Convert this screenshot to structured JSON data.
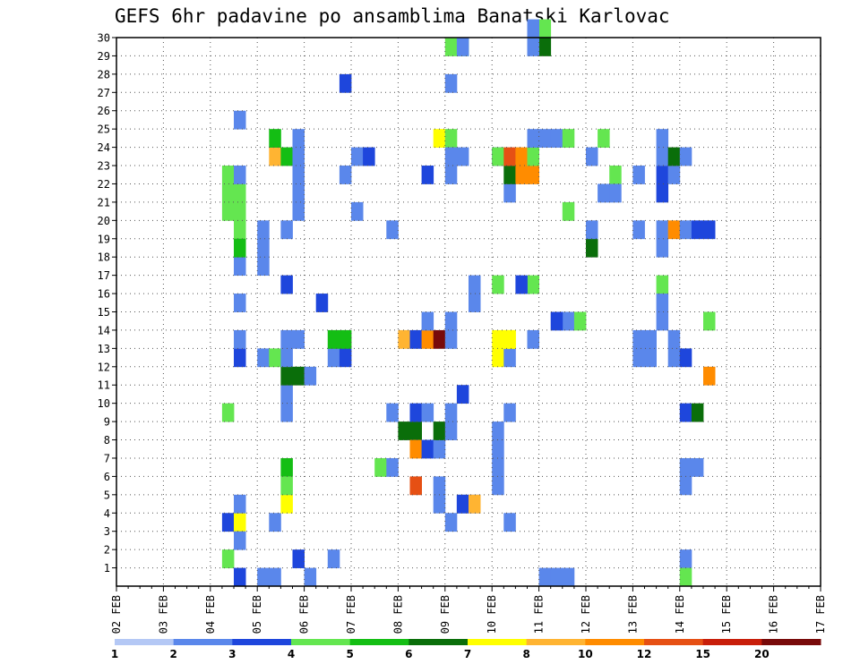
{
  "chart_data": {
    "type": "heatmap",
    "title": "GEFS 6hr padavine po ansamblima Banatski Karlovac",
    "x_ticks": [
      "02 FEB",
      "03 FEB",
      "04 FEB",
      "05 FEB",
      "06 FEB",
      "07 FEB",
      "08 FEB",
      "09 FEB",
      "10 FEB",
      "11 FEB",
      "12 FEB",
      "13 FEB",
      "14 FEB",
      "15 FEB",
      "16 FEB",
      "17 FEB"
    ],
    "y_ticks": [
      1,
      2,
      3,
      4,
      5,
      6,
      7,
      8,
      9,
      10,
      11,
      12,
      13,
      14,
      15,
      16,
      17,
      18,
      19,
      20,
      21,
      22,
      23,
      24,
      25,
      26,
      27,
      28,
      29,
      30
    ],
    "x_range": [
      "02 FEB 00",
      "17 FEB 00"
    ],
    "y_range": [
      0,
      30
    ],
    "step_hours": 6,
    "grid": true,
    "legend": {
      "placement": "bottom",
      "labels": [
        "1",
        "2",
        "3",
        "4",
        "5",
        "6",
        "7",
        "8",
        "10",
        "12",
        "15",
        "20"
      ],
      "colors": [
        "#b4c8f5",
        "#5a87eb",
        "#1e46dc",
        "#64e650",
        "#14be14",
        "#0a6e0a",
        "#ffff00",
        "#ffb432",
        "#ff8c00",
        "#e65014",
        "#c81e0a",
        "#780a0a"
      ]
    },
    "cells": [
      [
        9,
        1,
        3
      ],
      [
        9,
        9,
        3
      ],
      [
        9,
        20,
        3
      ],
      [
        9,
        21,
        3
      ],
      [
        9,
        22,
        3
      ],
      [
        10,
        19,
        3
      ],
      [
        10,
        20,
        3
      ],
      [
        10,
        21,
        3
      ],
      [
        9,
        3,
        2
      ],
      [
        10,
        3,
        6
      ],
      [
        10,
        2,
        1
      ],
      [
        10,
        4,
        1
      ],
      [
        10,
        12,
        2
      ],
      [
        10,
        13,
        1
      ],
      [
        10,
        15,
        1
      ],
      [
        10,
        17,
        1
      ],
      [
        10,
        18,
        4
      ],
      [
        10,
        22,
        1
      ],
      [
        10,
        25,
        1
      ],
      [
        10,
        0,
        2
      ],
      [
        12,
        0,
        1
      ],
      [
        13,
        0,
        1
      ],
      [
        12,
        12,
        1
      ],
      [
        12,
        17,
        1
      ],
      [
        12,
        18,
        1
      ],
      [
        12,
        19,
        1
      ],
      [
        13,
        3,
        1
      ],
      [
        13,
        12,
        3
      ],
      [
        13,
        23,
        7
      ],
      [
        13,
        24,
        4
      ],
      [
        14,
        4,
        6
      ],
      [
        14,
        6,
        4
      ],
      [
        14,
        5,
        3
      ],
      [
        14,
        9,
        1
      ],
      [
        14,
        10,
        1
      ],
      [
        14,
        11,
        5
      ],
      [
        14,
        12,
        1
      ],
      [
        14,
        13,
        1
      ],
      [
        14,
        16,
        2
      ],
      [
        14,
        19,
        1
      ],
      [
        14,
        23,
        4
      ],
      [
        15,
        1,
        2
      ],
      [
        15,
        11,
        5
      ],
      [
        15,
        13,
        1
      ],
      [
        15,
        20,
        1
      ],
      [
        15,
        21,
        1
      ],
      [
        15,
        22,
        1
      ],
      [
        15,
        23,
        1
      ],
      [
        15,
        24,
        1
      ],
      [
        16,
        0,
        1
      ],
      [
        16,
        11,
        1
      ],
      [
        17,
        15,
        2
      ],
      [
        18,
        1,
        1
      ],
      [
        18,
        12,
        1
      ],
      [
        18,
        13,
        4
      ],
      [
        19,
        12,
        2
      ],
      [
        19,
        13,
        4
      ],
      [
        19,
        22,
        1
      ],
      [
        19,
        27,
        2
      ],
      [
        20,
        20,
        1
      ],
      [
        20,
        23,
        1
      ],
      [
        21,
        23,
        2
      ],
      [
        22,
        6,
        3
      ],
      [
        23,
        6,
        1
      ],
      [
        23,
        9,
        1
      ],
      [
        23,
        19,
        1
      ],
      [
        24,
        8,
        5
      ],
      [
        24,
        13,
        7
      ],
      [
        25,
        8,
        5
      ],
      [
        25,
        7,
        8
      ],
      [
        25,
        13,
        2
      ],
      [
        25,
        9,
        2
      ],
      [
        25,
        5,
        9
      ],
      [
        26,
        7,
        2
      ],
      [
        26,
        9,
        1
      ],
      [
        26,
        13,
        8
      ],
      [
        26,
        14,
        1
      ],
      [
        26,
        22,
        2
      ],
      [
        27,
        7,
        1
      ],
      [
        27,
        13,
        12
      ],
      [
        27,
        5,
        1
      ],
      [
        27,
        4,
        1
      ],
      [
        27,
        24,
        6
      ],
      [
        27,
        8,
        5
      ],
      [
        28,
        3,
        1
      ],
      [
        28,
        29,
        3
      ],
      [
        28,
        24,
        3
      ],
      [
        28,
        13,
        1
      ],
      [
        28,
        14,
        1
      ],
      [
        28,
        8,
        1
      ],
      [
        28,
        9,
        1
      ],
      [
        29,
        29,
        3
      ],
      [
        28,
        22,
        1
      ],
      [
        28,
        27,
        1
      ],
      [
        28,
        23,
        1
      ],
      [
        29,
        23,
        1
      ],
      [
        29,
        29,
        1
      ],
      [
        29,
        4,
        1
      ],
      [
        30,
        4,
        1
      ],
      [
        29,
        4,
        2
      ],
      [
        30,
        4,
        7
      ],
      [
        29,
        10,
        2
      ],
      [
        30,
        16,
        1
      ],
      [
        30,
        15,
        1
      ],
      [
        32,
        8,
        1
      ],
      [
        32,
        7,
        1
      ],
      [
        32,
        6,
        1
      ],
      [
        32,
        5,
        1
      ],
      [
        32,
        13,
        6
      ],
      [
        32,
        12,
        6
      ],
      [
        32,
        16,
        3
      ],
      [
        32,
        23,
        2
      ],
      [
        32,
        23,
        3
      ],
      [
        33,
        3,
        1
      ],
      [
        33,
        9,
        1
      ],
      [
        33,
        12,
        1
      ],
      [
        33,
        13,
        6
      ],
      [
        33,
        21,
        1
      ],
      [
        33,
        22,
        5
      ],
      [
        33,
        23,
        9
      ],
      [
        33,
        13,
        6
      ],
      [
        34,
        22,
        8
      ],
      [
        34,
        23,
        8
      ],
      [
        35,
        22,
        8
      ],
      [
        35,
        16,
        3
      ],
      [
        35,
        13,
        1
      ],
      [
        35,
        23,
        3
      ],
      [
        35,
        24,
        1
      ],
      [
        36,
        24,
        1
      ],
      [
        37,
        24,
        1
      ],
      [
        36,
        29,
        5
      ],
      [
        36,
        30,
        3
      ],
      [
        35,
        29,
        1
      ],
      [
        35,
        30,
        1
      ],
      [
        34,
        16,
        2
      ],
      [
        36,
        0,
        1
      ],
      [
        37,
        0,
        1
      ],
      [
        38,
        0,
        1
      ],
      [
        38,
        14,
        1
      ],
      [
        39,
        14,
        3
      ],
      [
        37,
        14,
        2
      ],
      [
        38,
        24,
        3
      ],
      [
        38,
        20,
        3
      ],
      [
        40,
        18,
        5
      ],
      [
        40,
        19,
        1
      ],
      [
        40,
        23,
        1
      ],
      [
        41,
        24,
        3
      ],
      [
        41,
        21,
        1
      ],
      [
        42,
        22,
        3
      ],
      [
        42,
        21,
        1
      ],
      [
        44,
        22,
        1
      ],
      [
        44,
        19,
        1
      ],
      [
        44,
        12,
        1
      ],
      [
        44,
        13,
        1
      ],
      [
        45,
        13,
        1
      ],
      [
        45,
        12,
        1
      ],
      [
        46,
        22,
        2
      ],
      [
        46,
        21,
        2
      ],
      [
        46,
        23,
        1
      ],
      [
        46,
        24,
        1
      ],
      [
        46,
        19,
        1
      ],
      [
        46,
        18,
        1
      ],
      [
        47,
        22,
        1
      ],
      [
        47,
        23,
        5
      ],
      [
        47,
        19,
        8
      ],
      [
        46,
        16,
        3
      ],
      [
        46,
        15,
        1
      ],
      [
        46,
        14,
        1
      ],
      [
        47,
        12,
        1
      ],
      [
        47,
        13,
        1
      ],
      [
        48,
        12,
        2
      ],
      [
        48,
        19,
        1
      ],
      [
        48,
        23,
        1
      ],
      [
        48,
        9,
        2
      ],
      [
        49,
        9,
        5
      ],
      [
        48,
        6,
        1
      ],
      [
        48,
        5,
        1
      ],
      [
        49,
        6,
        1
      ],
      [
        48,
        1,
        1
      ],
      [
        48,
        0,
        3
      ],
      [
        49,
        19,
        2
      ],
      [
        50,
        19,
        2
      ],
      [
        50,
        14,
        3
      ],
      [
        50,
        11,
        8
      ]
    ]
  }
}
